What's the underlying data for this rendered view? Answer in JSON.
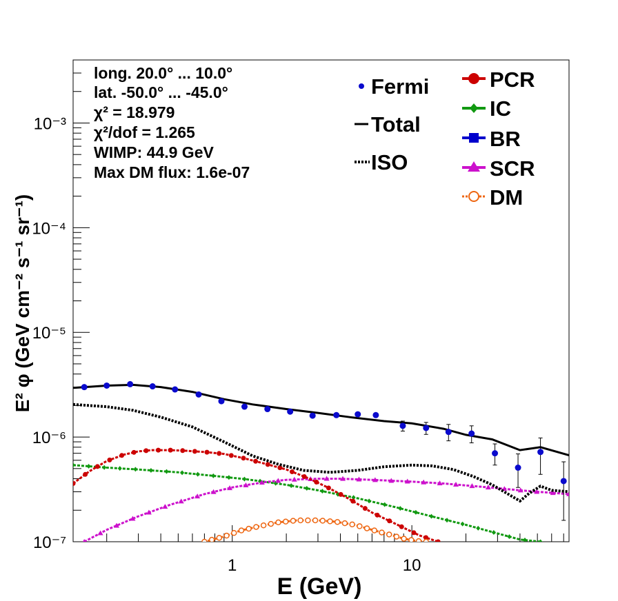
{
  "chart_data": {
    "type": "line",
    "xlabel": "E (GeV)",
    "ylabel": "E² φ (GeV cm⁻² s⁻¹ sr⁻¹)",
    "xscale": "log",
    "yscale": "log",
    "xlim": [
      0.13,
      75
    ],
    "ylim": [
      1e-07,
      0.004
    ],
    "x_tick_labels": [
      "1",
      "10"
    ],
    "y_tick_labels": [
      "10⁻⁷",
      "10⁻⁶",
      "10⁻⁵",
      "10⁻⁴",
      "10⁻³"
    ],
    "info_lines": [
      "long. 20.0° ... 10.0°",
      "lat. -50.0° ... -45.0°",
      "χ² = 18.979",
      "χ²/dof = 1.265",
      "WIMP: 44.9 GeV",
      "Max DM flux: 1.6e-07"
    ],
    "legend_left": [
      "Fermi",
      "Total",
      "ISO"
    ],
    "legend_right": [
      "PCR",
      "IC",
      "BR",
      "SCR",
      "DM"
    ],
    "legend_placement": "top-right",
    "grid": false,
    "colors": {
      "fermi": "#0a0acd",
      "total": "#000000",
      "iso": "#000000",
      "pcr": "#cc0000",
      "ic": "#119911",
      "br": "#0000cc",
      "scr": "#cc11cc",
      "dm": "#ee6611"
    },
    "fermi": {
      "x": [
        0.15,
        0.2,
        0.27,
        0.36,
        0.48,
        0.65,
        0.87,
        1.17,
        1.57,
        2.1,
        2.8,
        3.8,
        5.0,
        6.3,
        8.9,
        12.0,
        16.0,
        21.5,
        29.0,
        39.0,
        52.0,
        70.0
      ],
      "y": [
        3e-06,
        3.1e-06,
        3.2e-06,
        3.05e-06,
        2.85e-06,
        2.55e-06,
        2.2e-06,
        1.95e-06,
        1.85e-06,
        1.75e-06,
        1.6e-06,
        1.62e-06,
        1.65e-06,
        1.62e-06,
        1.28e-06,
        1.22e-06,
        1.12e-06,
        1.08e-06,
        7e-07,
        5.1e-07,
        7.2e-07,
        3.8e-07
      ],
      "err_lo": [
        5e-08,
        5e-08,
        5e-08,
        5e-08,
        5e-08,
        5e-08,
        5e-08,
        5e-08,
        5e-08,
        5e-08,
        6e-08,
        7e-08,
        8e-08,
        1e-07,
        1.4e-07,
        1.6e-07,
        2e-07,
        2e-07,
        1.6e-07,
        1.8e-07,
        2.8e-07,
        2.2e-07
      ],
      "err_hi": [
        5e-08,
        5e-08,
        5e-08,
        5e-08,
        5e-08,
        5e-08,
        5e-08,
        5e-08,
        5e-08,
        5e-08,
        6e-08,
        7e-08,
        8e-08,
        1e-07,
        1.4e-07,
        1.6e-07,
        2e-07,
        2e-07,
        1.6e-07,
        1.8e-07,
        2.6e-07,
        2e-07
      ]
    },
    "total": {
      "x": [
        0.13,
        0.2,
        0.28,
        0.4,
        0.6,
        0.9,
        1.3,
        2.0,
        3.0,
        4.5,
        7.0,
        10.0,
        15.0,
        20.0,
        28.0,
        40.0,
        52.0,
        75.0
      ],
      "y": [
        2.95e-06,
        3.1e-06,
        3.15e-06,
        3e-06,
        2.7e-06,
        2.3e-06,
        2.05e-06,
        1.85e-06,
        1.7e-06,
        1.55e-06,
        1.42e-06,
        1.35e-06,
        1.2e-06,
        1.05e-06,
        9.5e-07,
        7.5e-07,
        8e-07,
        6.7e-07
      ]
    },
    "iso": {
      "x": [
        0.13,
        0.2,
        0.28,
        0.4,
        0.6,
        0.9,
        1.3,
        1.8,
        2.5,
        3.5,
        5.0,
        7.0,
        10.0,
        13.0,
        17.0,
        22.0,
        28.0,
        35.0,
        40.0,
        45.0,
        52.0,
        60.0,
        75.0
      ],
      "y": [
        2.05e-06,
        1.95e-06,
        1.8e-06,
        1.55e-06,
        1.25e-06,
        9e-07,
        6.6e-07,
        5.5e-07,
        4.8e-07,
        4.6e-07,
        4.8e-07,
        5.2e-07,
        5.4e-07,
        5.3e-07,
        4.9e-07,
        4.2e-07,
        3.5e-07,
        2.8e-07,
        2.45e-07,
        2.9e-07,
        3.4e-07,
        3.1e-07,
        3e-07
      ]
    },
    "pcr": {
      "x": [
        0.13,
        0.16,
        0.2,
        0.25,
        0.3,
        0.36,
        0.45,
        0.55,
        0.7,
        0.9,
        1.15,
        1.5,
        2.0,
        2.6,
        3.4,
        4.5,
        6.0,
        8.0,
        11.0,
        14.0
      ],
      "y": [
        3.6e-07,
        4.7e-07,
        5.9e-07,
        6.8e-07,
        7.3e-07,
        7.5e-07,
        7.5e-07,
        7.4e-07,
        7.2e-07,
        6.9e-07,
        6.3e-07,
        5.6e-07,
        4.9e-07,
        4.1e-07,
        3.3e-07,
        2.55e-07,
        1.9e-07,
        1.5e-07,
        1.15e-07,
        1e-07
      ]
    },
    "ic": {
      "x": [
        0.13,
        0.2,
        0.3,
        0.5,
        0.8,
        1.2,
        2.0,
        3.0,
        5.0,
        8.0,
        12.0,
        20.0,
        30.0,
        40.0,
        52.0
      ],
      "y": [
        5.4e-07,
        5.1e-07,
        4.9e-07,
        4.6e-07,
        4.25e-07,
        3.95e-07,
        3.5e-07,
        3.1e-07,
        2.6e-07,
        2.15e-07,
        1.8e-07,
        1.45e-07,
        1.2e-07,
        1.05e-07,
        1e-07
      ]
    },
    "scr": {
      "x": [
        0.15,
        0.2,
        0.3,
        0.45,
        0.7,
        1.0,
        1.5,
        2.0,
        3.0,
        4.0,
        6.0,
        10.0,
        15.0,
        20.0,
        30.0,
        40.0,
        50.0,
        75.0
      ],
      "y": [
        1e-07,
        1.3e-07,
        1.75e-07,
        2.25e-07,
        2.85e-07,
        3.3e-07,
        3.7e-07,
        3.9e-07,
        4e-07,
        4e-07,
        3.9e-07,
        3.75e-07,
        3.6e-07,
        3.45e-07,
        3.25e-07,
        3.1e-07,
        3e-07,
        2.85e-07
      ]
    },
    "dm": {
      "x": [
        0.7,
        0.9,
        1.1,
        1.4,
        1.8,
        2.3,
        3.0,
        3.8,
        4.8,
        6.0,
        7.5,
        9.0,
        10.5,
        12.0
      ],
      "y": [
        1e-07,
        1.12e-07,
        1.27e-07,
        1.4e-07,
        1.53e-07,
        1.6e-07,
        1.6e-07,
        1.55e-07,
        1.45e-07,
        1.3e-07,
        1.17e-07,
        1.07e-07,
        1.02e-07,
        1e-07
      ]
    }
  }
}
